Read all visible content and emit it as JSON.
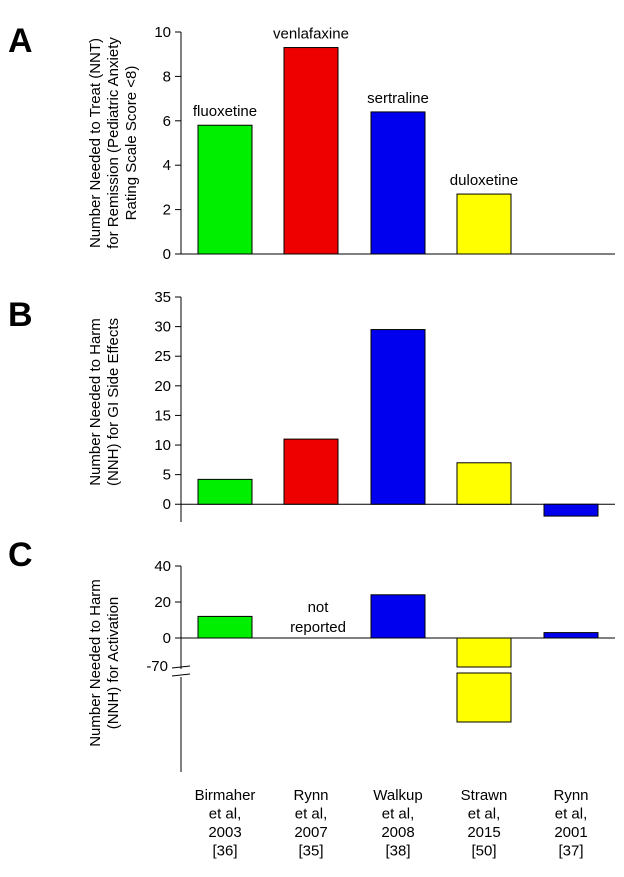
{
  "colors": {
    "fluoxetine": "#00ee00",
    "venlafaxine": "#ee0000",
    "sertraline": "#0000ee",
    "duloxetine": "#ffff00"
  },
  "categories": [
    [
      "Birmaher",
      "et al,",
      "2003",
      "[36]"
    ],
    [
      "Rynn",
      "et al,",
      "2007",
      "[35]"
    ],
    [
      "Walkup",
      "et al,",
      "2008",
      "[38]"
    ],
    [
      "Strawn",
      "et al,",
      "2015",
      "[50]"
    ],
    [
      "Rynn",
      "et al,",
      "2001",
      "[37]"
    ]
  ],
  "chart_data": [
    {
      "panel": "A",
      "type": "bar",
      "ylabel": [
        "Number Needed to Treat (NNT)",
        "for Remission (Pediatric Anxiety",
        "Rating Scale Score <8)"
      ],
      "ylim": [
        0,
        10
      ],
      "yticks": [
        0,
        2,
        4,
        6,
        8,
        10
      ],
      "bars": [
        {
          "value": 5.8,
          "color": "fluoxetine",
          "label": "fluoxetine"
        },
        {
          "value": 9.3,
          "color": "venlafaxine",
          "label": "venlafaxine"
        },
        {
          "value": 6.4,
          "color": "sertraline",
          "label": "sertraline"
        },
        {
          "value": 2.7,
          "color": "duloxetine",
          "label": "duloxetine"
        },
        null
      ]
    },
    {
      "panel": "B",
      "type": "bar",
      "ylabel": [
        "Number Needed to Harm",
        "(NNH) for GI Side Effects"
      ],
      "ylim": [
        -3,
        35
      ],
      "yticks": [
        0,
        5,
        10,
        15,
        20,
        25,
        30,
        35
      ],
      "bars": [
        {
          "value": 4.2,
          "color": "fluoxetine"
        },
        {
          "value": 11,
          "color": "venlafaxine"
        },
        {
          "value": 29.5,
          "color": "sertraline"
        },
        {
          "value": 7,
          "color": "duloxetine"
        },
        {
          "value": -2,
          "color": "sertraline"
        }
      ]
    },
    {
      "panel": "C",
      "type": "bar",
      "ylabel": [
        "Number Needed to Harm",
        "(NNH) for Activation"
      ],
      "ylim": [
        -20,
        40
      ],
      "yticks": [
        0,
        20,
        40
      ],
      "broken_axis_tick": "-70",
      "bars": [
        {
          "value": 12,
          "color": "fluoxetine"
        },
        null,
        {
          "value": 24,
          "color": "sertraline"
        },
        {
          "value": -70,
          "color": "duloxetine",
          "broken": true
        },
        {
          "value": 3,
          "color": "sertraline"
        }
      ],
      "annotation": [
        "not",
        "reported"
      ]
    }
  ]
}
